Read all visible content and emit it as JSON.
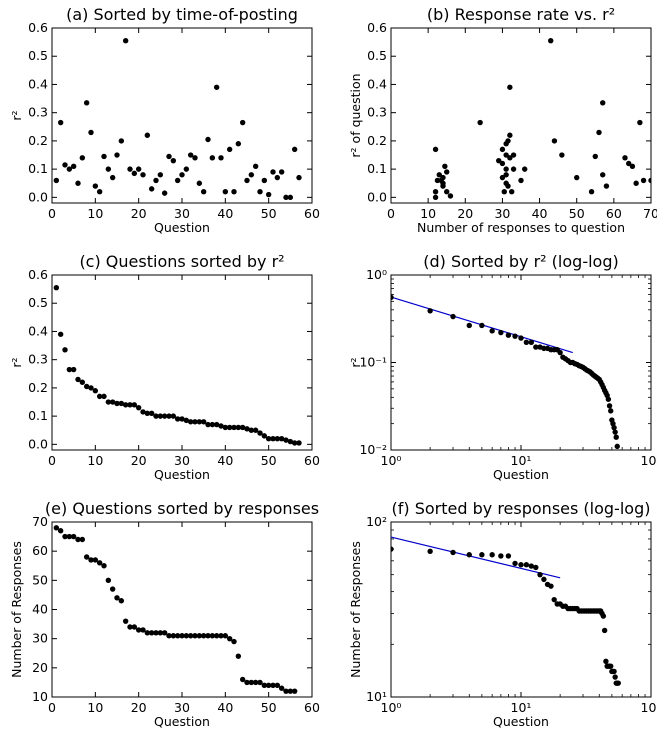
{
  "chart_data": [
    {
      "id": "a",
      "type": "scatter",
      "title": "(a) Sorted by time-of-posting",
      "xlabel": "Question",
      "ylabel": "r²",
      "xscale": "linear",
      "yscale": "linear",
      "xlim": [
        0,
        60
      ],
      "ylim": [
        -0.02,
        0.6
      ],
      "xticks": [
        0,
        10,
        20,
        30,
        40,
        50,
        60
      ],
      "xtick_labels": [
        "0",
        "10",
        "20",
        "30",
        "40",
        "50",
        "60"
      ],
      "yticks": [
        0.0,
        0.1,
        0.2,
        0.3,
        0.4,
        0.5,
        0.6
      ],
      "ytick_labels": [
        "0.0",
        "0.1",
        "0.2",
        "0.3",
        "0.4",
        "0.5",
        "0.6"
      ],
      "x": [
        1,
        2,
        3,
        4,
        5,
        6,
        7,
        8,
        9,
        10,
        11,
        12,
        13,
        14,
        15,
        16,
        17,
        18,
        19,
        20,
        21,
        22,
        23,
        24,
        25,
        26,
        27,
        28,
        29,
        30,
        31,
        32,
        33,
        34,
        35,
        36,
        37,
        38,
        39,
        40,
        41,
        42,
        43,
        44,
        45,
        46,
        47,
        48,
        49,
        50,
        51,
        52,
        53,
        54,
        55,
        56,
        57
      ],
      "y": [
        0.06,
        0.265,
        0.115,
        0.1,
        0.11,
        0.05,
        0.14,
        0.335,
        0.23,
        0.04,
        0.02,
        0.145,
        0.1,
        0.07,
        0.15,
        0.2,
        0.555,
        0.1,
        0.085,
        0.1,
        0.08,
        0.22,
        0.03,
        0.06,
        0.08,
        0.015,
        0.145,
        0.13,
        0.06,
        0.08,
        0.1,
        0.15,
        0.14,
        0.05,
        0.02,
        0.205,
        0.14,
        0.39,
        0.14,
        0.02,
        0.17,
        0.02,
        0.19,
        0.265,
        0.06,
        0.08,
        0.11,
        0.02,
        0.06,
        0.01,
        0.09,
        0.07,
        0.09,
        0.0,
        0.0,
        0.17,
        0.07
      ]
    },
    {
      "id": "b",
      "type": "scatter",
      "title": "(b) Response rate vs. r²",
      "xlabel": "Number of responses to question",
      "ylabel": "r²  of question",
      "xscale": "linear",
      "yscale": "linear",
      "xlim": [
        0,
        70
      ],
      "ylim": [
        -0.02,
        0.6
      ],
      "xticks": [
        0,
        10,
        20,
        30,
        40,
        50,
        60,
        70
      ],
      "xtick_labels": [
        "0",
        "10",
        "20",
        "30",
        "40",
        "50",
        "60",
        "70"
      ],
      "yticks": [
        0.0,
        0.1,
        0.2,
        0.3,
        0.4,
        0.5,
        0.6
      ],
      "ytick_labels": [
        "0.0",
        "0.1",
        "0.2",
        "0.3",
        "0.4",
        "0.5",
        "0.6"
      ],
      "x": [
        12,
        12,
        12.5,
        13,
        13.5,
        14,
        14,
        14.5,
        15,
        15,
        16,
        24,
        29,
        30,
        30,
        30,
        30.5,
        31,
        31,
        31,
        31,
        31,
        31.5,
        31.5,
        32,
        32,
        32,
        32.5,
        33,
        33,
        35,
        36,
        43,
        44,
        46,
        50,
        54,
        55,
        56,
        57,
        57,
        58,
        63,
        64,
        65,
        66,
        67,
        68,
        70,
        12,
        14
      ],
      "y": [
        0.0,
        0.17,
        0.06,
        0.08,
        0.06,
        0.05,
        0.07,
        0.11,
        0.02,
        0.09,
        0.005,
        0.265,
        0.13,
        0.17,
        0.12,
        0.07,
        0.02,
        0.19,
        0.15,
        0.1,
        0.08,
        0.05,
        0.04,
        0.2,
        0.39,
        0.22,
        0.14,
        0.02,
        0.15,
        0.1,
        0.06,
        0.1,
        0.555,
        0.2,
        0.15,
        0.07,
        0.02,
        0.145,
        0.23,
        0.335,
        0.08,
        0.04,
        0.14,
        0.12,
        0.11,
        0.05,
        0.265,
        0.06,
        0.06,
        0.02,
        0.04
      ]
    },
    {
      "id": "c",
      "type": "scatter",
      "title": "(c) Questions sorted by r²",
      "xlabel": "Question",
      "ylabel": "r²",
      "xscale": "linear",
      "yscale": "linear",
      "xlim": [
        0,
        60
      ],
      "ylim": [
        -0.02,
        0.6
      ],
      "xticks": [
        0,
        10,
        20,
        30,
        40,
        50,
        60
      ],
      "xtick_labels": [
        "0",
        "10",
        "20",
        "30",
        "40",
        "50",
        "60"
      ],
      "yticks": [
        0.0,
        0.1,
        0.2,
        0.3,
        0.4,
        0.5,
        0.6
      ],
      "ytick_labels": [
        "0.0",
        "0.1",
        "0.2",
        "0.3",
        "0.4",
        "0.5",
        "0.6"
      ],
      "x": [
        1,
        2,
        3,
        4,
        5,
        6,
        7,
        8,
        9,
        10,
        11,
        12,
        13,
        14,
        15,
        16,
        17,
        18,
        19,
        20,
        21,
        22,
        23,
        24,
        25,
        26,
        27,
        28,
        29,
        30,
        31,
        32,
        33,
        34,
        35,
        36,
        37,
        38,
        39,
        40,
        41,
        42,
        43,
        44,
        45,
        46,
        47,
        48,
        49,
        50,
        51,
        52,
        53,
        54,
        55,
        56,
        57
      ],
      "y": [
        0.555,
        0.39,
        0.335,
        0.265,
        0.265,
        0.23,
        0.22,
        0.205,
        0.2,
        0.19,
        0.17,
        0.17,
        0.15,
        0.15,
        0.145,
        0.145,
        0.14,
        0.14,
        0.14,
        0.13,
        0.115,
        0.11,
        0.11,
        0.1,
        0.1,
        0.1,
        0.1,
        0.1,
        0.09,
        0.09,
        0.085,
        0.08,
        0.08,
        0.08,
        0.08,
        0.07,
        0.07,
        0.07,
        0.065,
        0.06,
        0.06,
        0.06,
        0.06,
        0.06,
        0.055,
        0.05,
        0.05,
        0.04,
        0.03,
        0.02,
        0.02,
        0.02,
        0.02,
        0.015,
        0.01,
        0.005,
        0.005
      ]
    },
    {
      "id": "d",
      "type": "scatter",
      "title": "(d) Sorted by r²  (log-log)",
      "xlabel": "Question",
      "ylabel": "r²",
      "xscale": "log",
      "yscale": "log",
      "xlim": [
        1,
        100
      ],
      "ylim": [
        0.01,
        1
      ],
      "xticks": [
        1,
        10,
        100
      ],
      "xtick_labels": [
        "10⁰",
        "10¹",
        "10²"
      ],
      "yticks": [
        0.01,
        0.1,
        1
      ],
      "ytick_labels": [
        "10⁻²",
        "10⁻¹",
        "10⁰"
      ],
      "x": [
        1,
        2,
        3,
        4,
        5,
        6,
        7,
        8,
        9,
        10,
        11,
        12,
        13,
        14,
        15,
        16,
        17,
        18,
        19,
        20,
        21,
        22,
        23,
        24,
        25,
        26,
        27,
        28,
        29,
        30,
        31,
        32,
        33,
        34,
        35,
        36,
        37,
        38,
        39,
        40,
        41,
        42,
        43,
        44,
        45,
        46,
        47,
        48,
        49,
        50,
        51,
        52,
        53,
        54,
        55
      ],
      "y": [
        0.555,
        0.39,
        0.335,
        0.265,
        0.265,
        0.23,
        0.22,
        0.205,
        0.2,
        0.19,
        0.17,
        0.17,
        0.15,
        0.15,
        0.145,
        0.145,
        0.14,
        0.14,
        0.14,
        0.13,
        0.115,
        0.11,
        0.105,
        0.1,
        0.1,
        0.097,
        0.095,
        0.092,
        0.09,
        0.088,
        0.085,
        0.082,
        0.08,
        0.078,
        0.075,
        0.072,
        0.07,
        0.068,
        0.066,
        0.064,
        0.06,
        0.056,
        0.052,
        0.048,
        0.045,
        0.042,
        0.038,
        0.032,
        0.028,
        0.022,
        0.02,
        0.018,
        0.016,
        0.014,
        0.011
      ],
      "fit_line": {
        "x": [
          1,
          25
        ],
        "y": [
          0.56,
          0.13
        ],
        "color": "#0000cc"
      }
    },
    {
      "id": "e",
      "type": "scatter",
      "title": "(e) Questions sorted by responses",
      "xlabel": "Question",
      "ylabel": "Number of Responses",
      "xscale": "linear",
      "yscale": "linear",
      "xlim": [
        0,
        60
      ],
      "ylim": [
        10,
        70
      ],
      "xticks": [
        0,
        10,
        20,
        30,
        40,
        50,
        60
      ],
      "xtick_labels": [
        "0",
        "10",
        "20",
        "30",
        "40",
        "50",
        "60"
      ],
      "yticks": [
        10,
        20,
        30,
        40,
        50,
        60,
        70
      ],
      "ytick_labels": [
        "10",
        "20",
        "30",
        "40",
        "50",
        "60",
        "70"
      ],
      "x": [
        1,
        2,
        3,
        4,
        5,
        6,
        7,
        8,
        9,
        10,
        11,
        12,
        13,
        14,
        15,
        16,
        17,
        18,
        19,
        20,
        21,
        22,
        23,
        24,
        25,
        26,
        27,
        28,
        29,
        30,
        31,
        32,
        33,
        34,
        35,
        36,
        37,
        38,
        39,
        40,
        41,
        42,
        43,
        44,
        45,
        46,
        47,
        48,
        49,
        50,
        51,
        52,
        53,
        54,
        55,
        56
      ],
      "y": [
        68,
        67,
        65,
        65,
        65,
        64,
        64,
        58,
        57,
        57,
        56,
        55,
        50,
        47,
        44,
        43,
        36,
        34,
        34,
        33,
        33,
        32,
        32,
        32,
        32,
        32,
        31,
        31,
        31,
        31,
        31,
        31,
        31,
        31,
        31,
        31,
        31,
        31,
        31,
        31,
        30,
        29,
        24,
        16,
        15,
        15,
        15,
        15,
        14,
        14,
        14,
        14,
        13,
        12,
        12,
        12
      ]
    },
    {
      "id": "f",
      "type": "scatter",
      "title": "(f) Sorted by responses (log-log)",
      "xlabel": "Question",
      "ylabel": "Number of Responses",
      "xscale": "log",
      "yscale": "log",
      "xlim": [
        1,
        100
      ],
      "ylim": [
        10,
        100
      ],
      "xticks": [
        1,
        10,
        100
      ],
      "xtick_labels": [
        "10⁰",
        "10¹",
        "10²"
      ],
      "yticks": [
        10,
        100
      ],
      "ytick_labels": [
        "10¹",
        "10²"
      ],
      "x": [
        1,
        2,
        3,
        4,
        5,
        6,
        7,
        8,
        9,
        10,
        11,
        12,
        13,
        14,
        15,
        16,
        17,
        18,
        19,
        20,
        21,
        22,
        23,
        24,
        25,
        26,
        27,
        28,
        29,
        30,
        31,
        32,
        33,
        34,
        35,
        36,
        37,
        38,
        39,
        40,
        41,
        42,
        43,
        44,
        45,
        46,
        47,
        48,
        49,
        50,
        51,
        52,
        53,
        54,
        55,
        56
      ],
      "y": [
        70,
        68,
        67,
        65,
        65,
        65,
        64,
        64,
        58,
        57,
        57,
        56,
        55,
        50,
        47,
        44,
        43,
        36,
        34,
        34,
        33,
        33,
        32,
        32,
        32,
        32,
        32,
        31,
        31,
        31,
        31,
        31,
        31,
        31,
        31,
        31,
        31,
        31,
        31,
        31,
        31,
        30,
        29,
        24,
        16,
        15,
        15,
        15,
        15,
        14,
        14,
        14,
        13,
        12,
        12,
        12
      ],
      "fit_line": {
        "x": [
          1,
          20
        ],
        "y": [
          82,
          48
        ],
        "color": "#0000cc"
      }
    }
  ]
}
